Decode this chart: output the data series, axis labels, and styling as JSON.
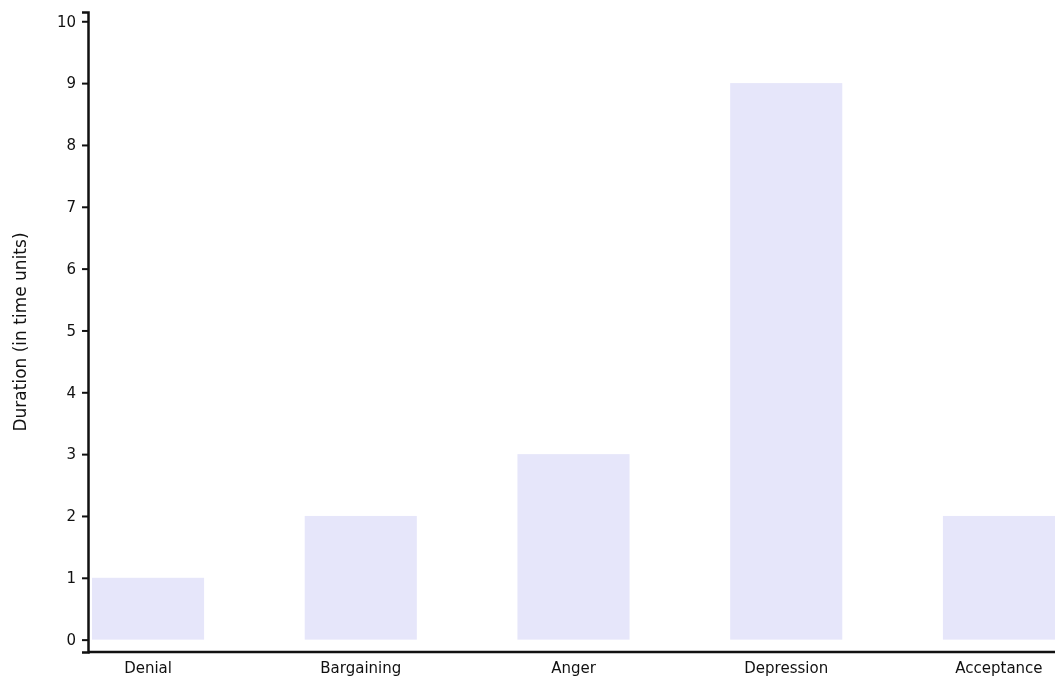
{
  "chart_data": {
    "type": "bar",
    "ylabel": "Duration (in time units)",
    "categories": [
      "Denial",
      "Bargaining",
      "Anger",
      "Depression",
      "Acceptance"
    ],
    "values": [
      1,
      2,
      3,
      9,
      2
    ],
    "color": "#e6e6fa",
    "ylim": [
      -0.2,
      10.15
    ],
    "yticks": [
      0,
      1,
      2,
      3,
      4,
      5,
      6,
      7,
      8,
      9,
      10
    ],
    "grid": false
  }
}
